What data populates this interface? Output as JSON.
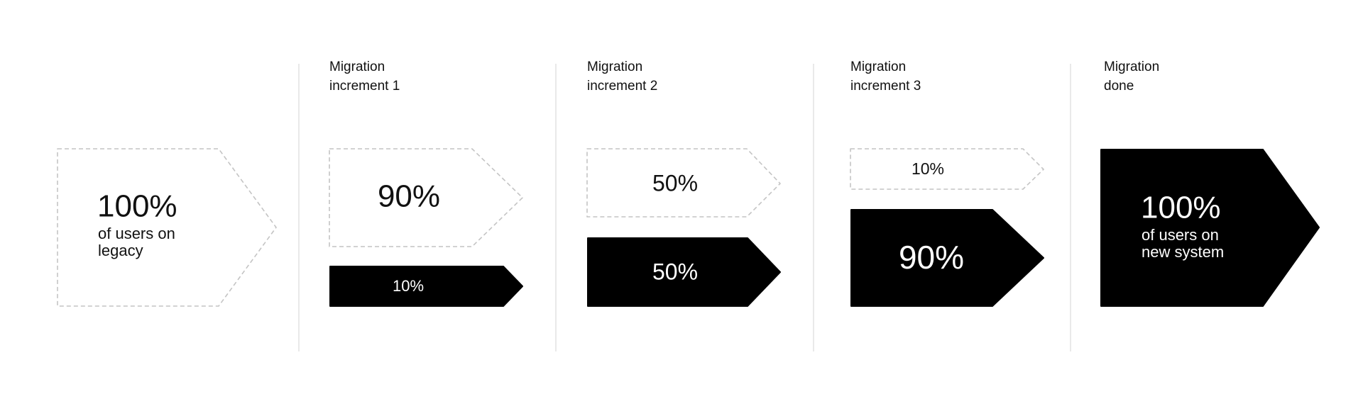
{
  "stages": [
    {
      "value": "100%",
      "caption": [
        "of users on",
        "legacy"
      ]
    },
    {
      "header": [
        "Migration",
        "increment 1"
      ],
      "legacy": "90%",
      "new": "10%"
    },
    {
      "header": [
        "Migration",
        "increment 2"
      ],
      "legacy": "50%",
      "new": "50%"
    },
    {
      "header": [
        "Migration",
        "increment 3"
      ],
      "legacy": "10%",
      "new": "90%"
    },
    {
      "header": [
        "Migration",
        "done"
      ],
      "value": "100%",
      "caption": [
        "of users on",
        "new system"
      ]
    }
  ]
}
